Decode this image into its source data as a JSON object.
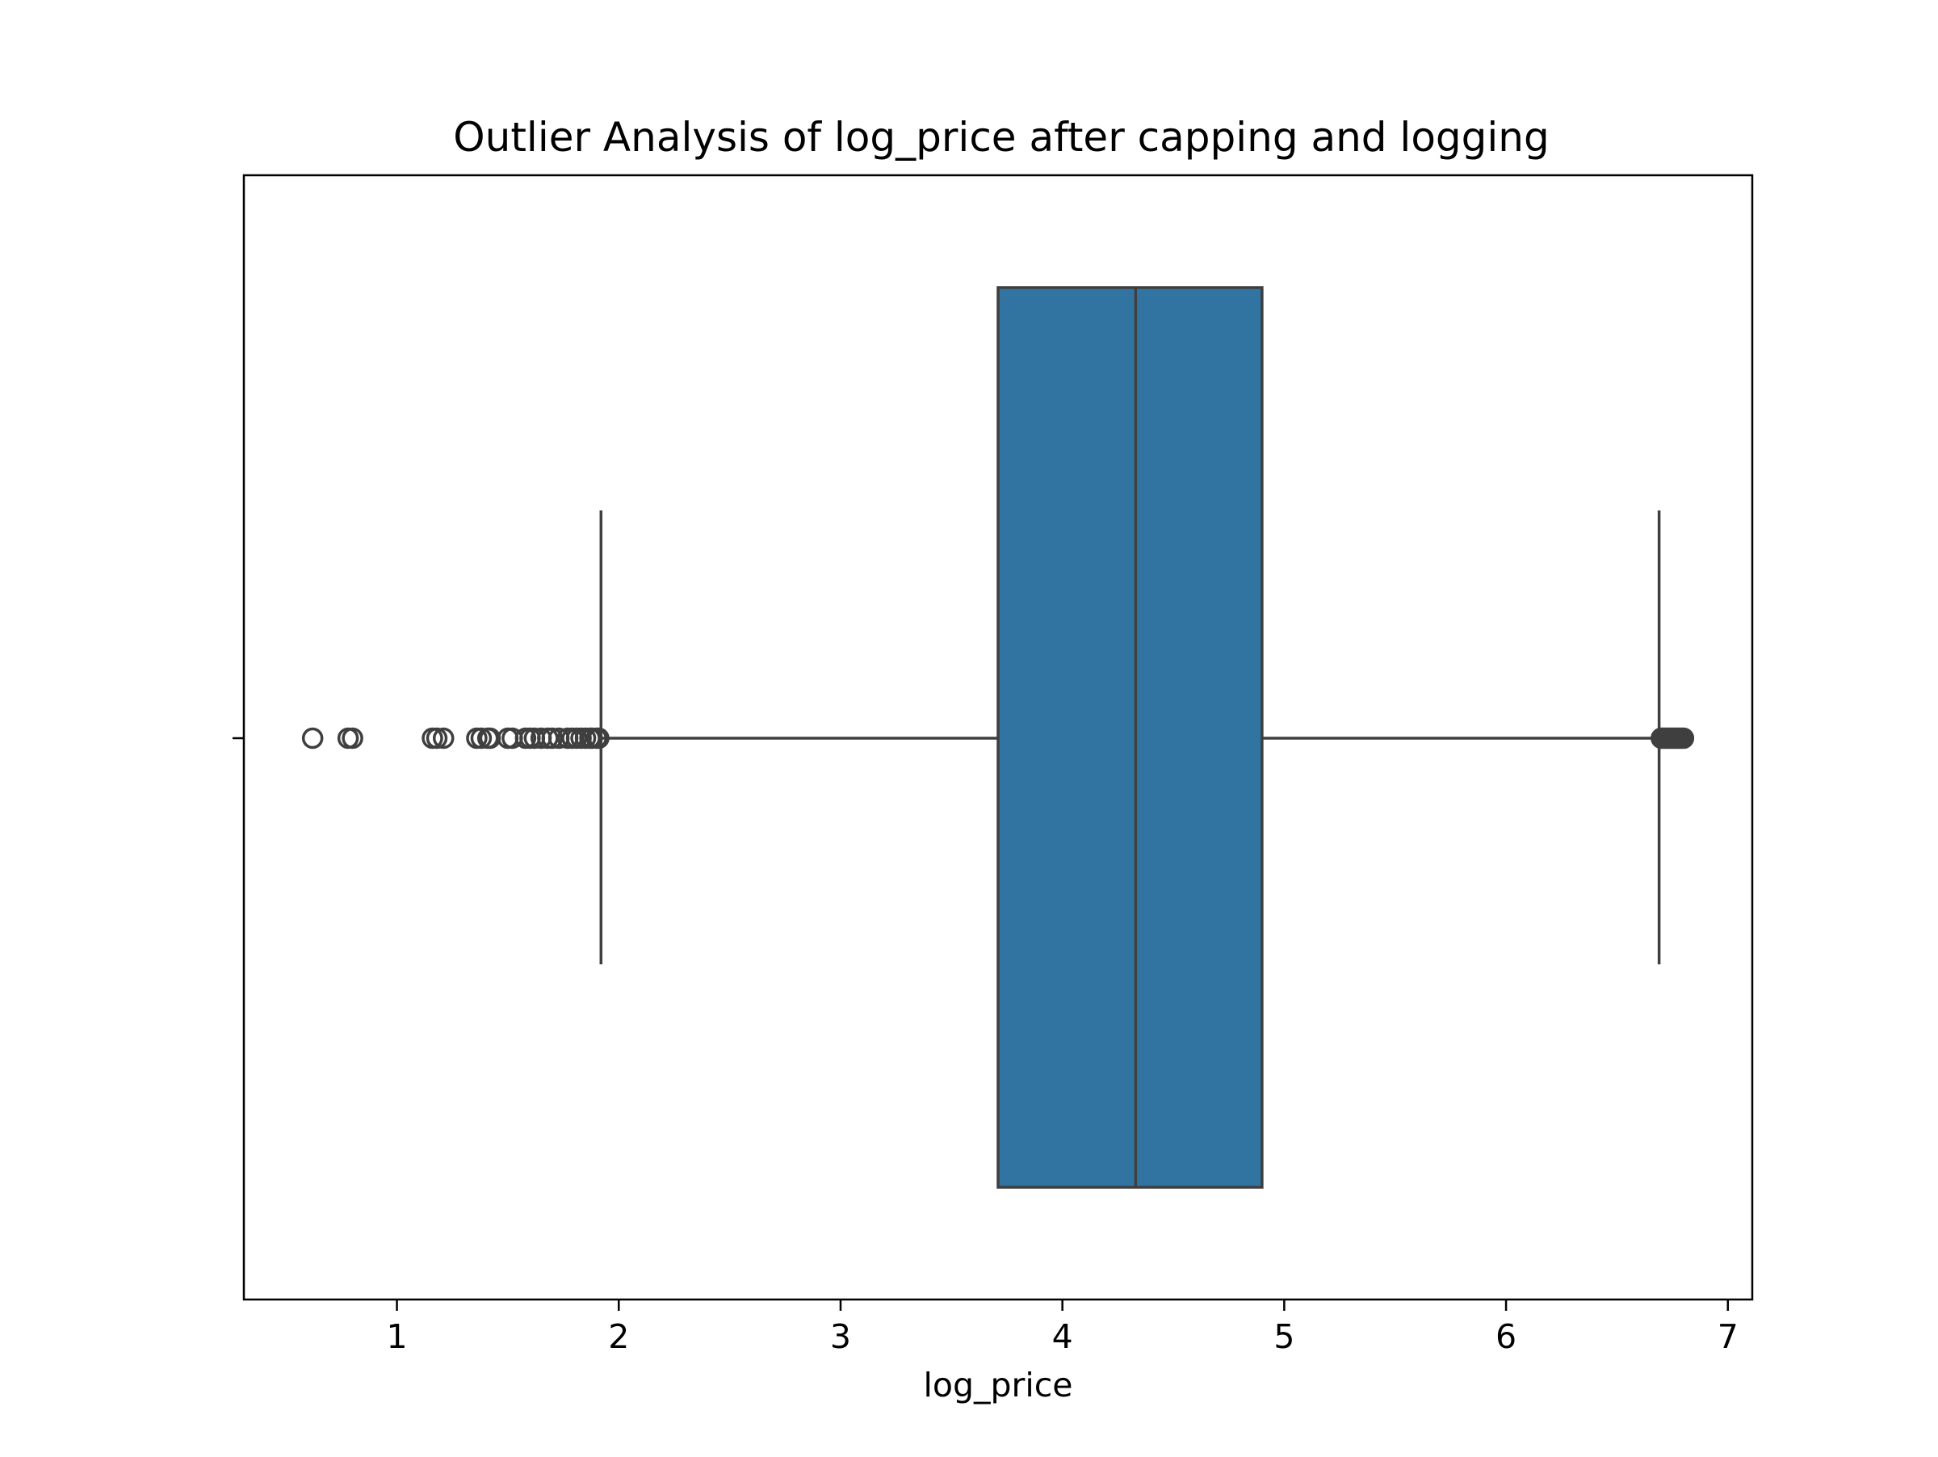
{
  "chart_data": {
    "type": "box",
    "title": "Outlier Analysis of log_price after capping and logging",
    "xlabel": "log_price",
    "ylabel": "",
    "orientation": "horizontal",
    "xlim": [
      0.31,
      7.11
    ],
    "x_ticks": [
      1,
      2,
      3,
      4,
      5,
      6,
      7
    ],
    "x_tick_labels": [
      "1",
      "2",
      "3",
      "4",
      "5",
      "6",
      "7"
    ],
    "grid": false,
    "box": {
      "q1": 3.71,
      "median": 4.33,
      "q3": 4.9,
      "whisker_low": 1.92,
      "whisker_high": 6.69,
      "fill_color": "#3274a1",
      "line_color": "#3f3f3f"
    },
    "outliers_low": [
      0.62,
      0.78,
      0.8,
      1.16,
      1.18,
      1.21,
      1.36,
      1.38,
      1.41,
      1.42,
      1.5,
      1.52,
      1.58,
      1.6,
      1.62,
      1.65,
      1.68,
      1.7,
      1.73,
      1.77,
      1.79,
      1.81,
      1.83,
      1.85,
      1.87,
      1.88,
      1.9,
      1.91
    ],
    "outliers_high": [
      6.7,
      6.71,
      6.72,
      6.73,
      6.74,
      6.75,
      6.76,
      6.77,
      6.78,
      6.79,
      6.8
    ]
  }
}
